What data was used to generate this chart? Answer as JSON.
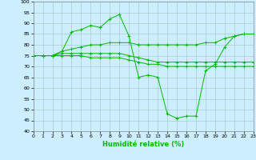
{
  "xlabel": "Humidité relative (%)",
  "background_color": "#cceeff",
  "grid_color": "#aacccc",
  "line_color": "#00bb00",
  "ylim": [
    40,
    100
  ],
  "xlim": [
    0,
    23
  ],
  "yticks": [
    40,
    45,
    50,
    55,
    60,
    65,
    70,
    75,
    80,
    85,
    90,
    95,
    100
  ],
  "xticks": [
    0,
    1,
    2,
    3,
    4,
    5,
    6,
    7,
    8,
    9,
    10,
    11,
    12,
    13,
    14,
    15,
    16,
    17,
    18,
    19,
    20,
    21,
    22,
    23
  ],
  "series": [
    {
      "x": [
        0,
        1,
        2,
        3,
        4,
        5,
        6,
        7,
        8,
        9,
        10,
        11,
        12,
        13,
        14,
        15,
        16,
        17,
        18,
        19,
        20,
        21,
        22,
        23
      ],
      "y": [
        75,
        75,
        75,
        77,
        86,
        87,
        89,
        88,
        92,
        94,
        84,
        65,
        66,
        65,
        48,
        46,
        47,
        47,
        68,
        71,
        79,
        84,
        85,
        85
      ]
    },
    {
      "x": [
        0,
        1,
        2,
        3,
        4,
        5,
        6,
        7,
        8,
        9,
        10,
        11,
        12,
        13,
        14,
        15,
        16,
        17,
        18,
        19,
        20,
        21,
        22,
        23
      ],
      "y": [
        75,
        75,
        75,
        77,
        78,
        79,
        80,
        80,
        81,
        81,
        81,
        80,
        80,
        80,
        80,
        80,
        80,
        80,
        81,
        81,
        83,
        84,
        85,
        85
      ]
    },
    {
      "x": [
        0,
        1,
        2,
        3,
        4,
        5,
        6,
        7,
        8,
        9,
        10,
        11,
        12,
        13,
        14,
        15,
        16,
        17,
        18,
        19,
        20,
        21,
        22,
        23
      ],
      "y": [
        75,
        75,
        75,
        76,
        76,
        76,
        76,
        76,
        76,
        76,
        75,
        74,
        73,
        72,
        72,
        72,
        72,
        72,
        72,
        72,
        72,
        72,
        72,
        72
      ]
    },
    {
      "x": [
        0,
        1,
        2,
        3,
        4,
        5,
        6,
        7,
        8,
        9,
        10,
        11,
        12,
        13,
        14,
        15,
        16,
        17,
        18,
        19,
        20,
        21,
        22,
        23
      ],
      "y": [
        75,
        75,
        75,
        75,
        75,
        75,
        74,
        74,
        74,
        74,
        73,
        72,
        71,
        71,
        70,
        70,
        70,
        70,
        70,
        70,
        70,
        70,
        70,
        70
      ]
    }
  ]
}
